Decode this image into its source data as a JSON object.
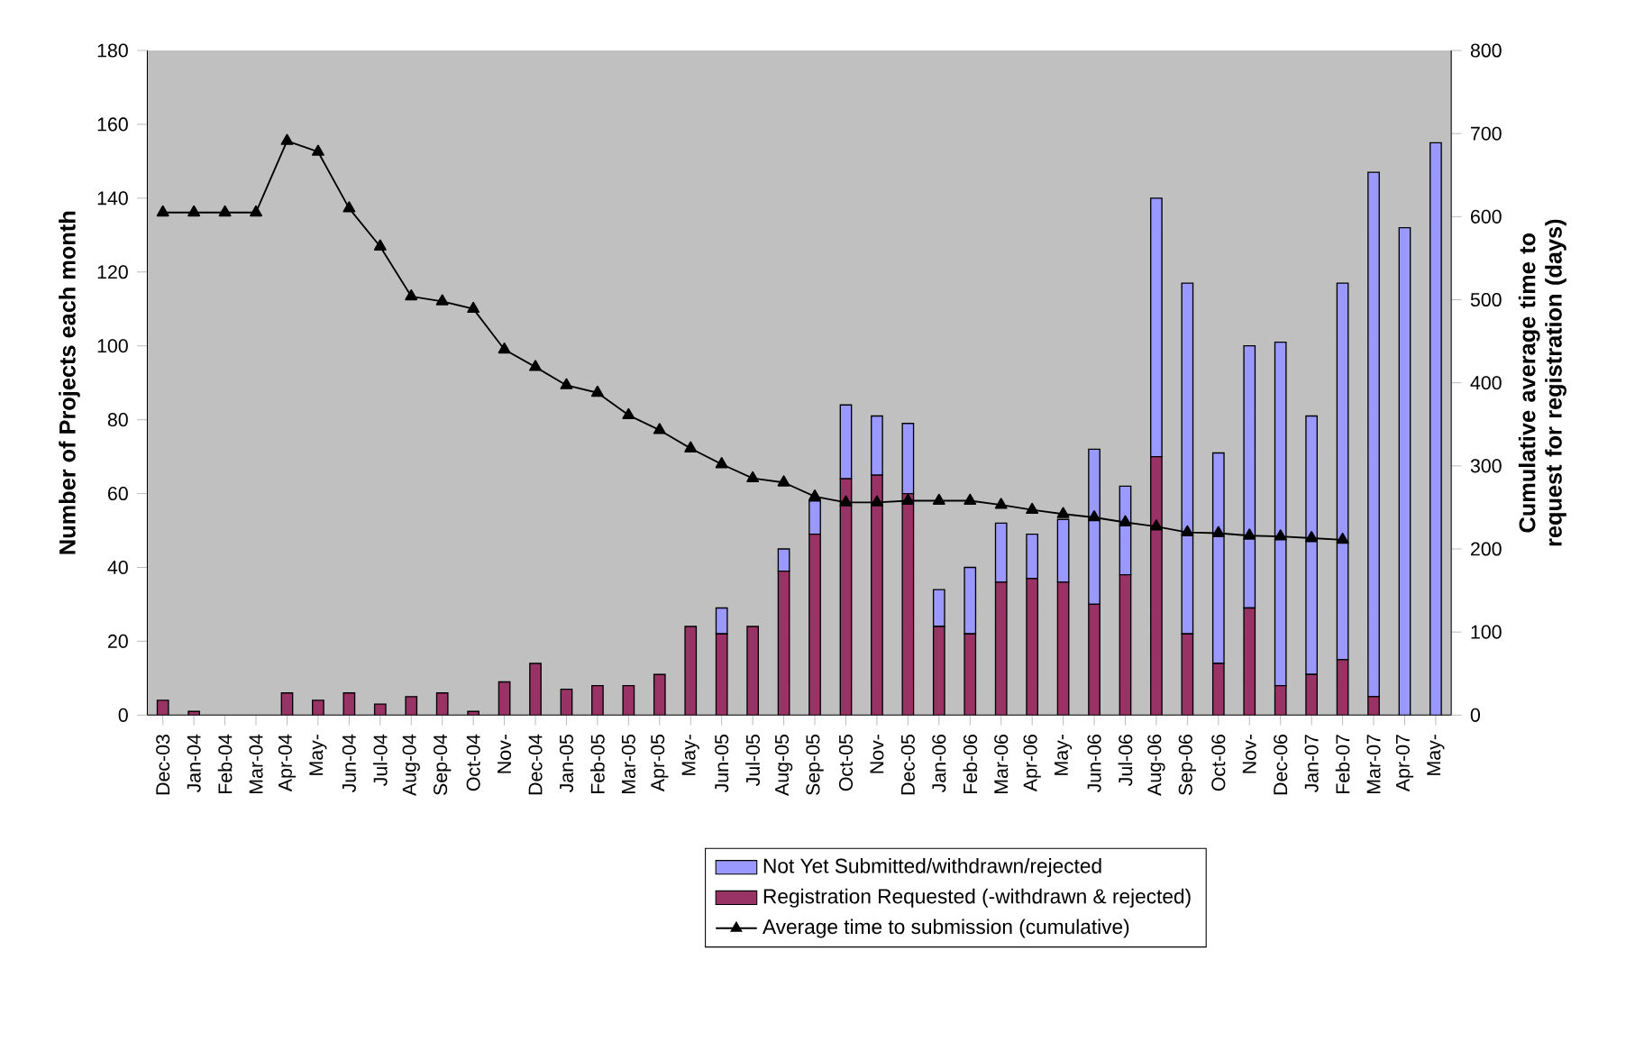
{
  "chart_data": {
    "type": "bar",
    "stacked": true,
    "ylabel": "Number of Projects each month",
    "y2label": "Cumulative average time to request for registration (days)",
    "categories": [
      "Dec-03",
      "Jan-04",
      "Feb-04",
      "Mar-04",
      "Apr-04",
      "May-",
      "Jun-04",
      "Jul-04",
      "Aug-04",
      "Sep-04",
      "Oct-04",
      "Nov-",
      "Dec-04",
      "Jan-05",
      "Feb-05",
      "Mar-05",
      "Apr-05",
      "May-",
      "Jun-05",
      "Jul-05",
      "Aug-05",
      "Sep-05",
      "Oct-05",
      "Nov-",
      "Dec-05",
      "Jan-06",
      "Feb-06",
      "Mar-06",
      "Apr-06",
      "May-",
      "Jun-06",
      "Jul-06",
      "Aug-06",
      "Sep-06",
      "Oct-06",
      "Nov-",
      "Dec-06",
      "Jan-07",
      "Feb-07",
      "Mar-07",
      "Apr-07",
      "May-"
    ],
    "ylim": [
      0,
      180
    ],
    "yticks": [
      0,
      20,
      40,
      60,
      80,
      100,
      120,
      140,
      160,
      180
    ],
    "y2lim": [
      0,
      800
    ],
    "y2ticks": [
      0,
      100,
      200,
      300,
      400,
      500,
      600,
      700,
      800
    ],
    "legend": "bottom",
    "series": [
      {
        "name": "Registration Requested  (-withdrawn & rejected)",
        "type": "bar",
        "color": "#993366",
        "values": [
          4,
          1,
          0,
          0,
          6,
          4,
          6,
          3,
          5,
          6,
          1,
          9,
          14,
          7,
          8,
          8,
          11,
          24,
          22,
          24,
          39,
          49,
          64,
          65,
          60,
          24,
          22,
          36,
          37,
          36,
          30,
          38,
          70,
          22,
          14,
          29,
          8,
          11,
          15,
          5,
          0,
          0
        ]
      },
      {
        "name": "Not Yet Submitted/withdrawn/rejected",
        "type": "bar",
        "color": "#9999ff",
        "values": [
          0,
          0,
          0,
          0,
          0,
          0,
          0,
          0,
          0,
          0,
          0,
          0,
          0,
          0,
          0,
          0,
          0,
          0,
          7,
          0,
          6,
          9,
          20,
          16,
          19,
          10,
          18,
          16,
          12,
          17,
          42,
          24,
          70,
          95,
          57,
          71,
          93,
          70,
          102,
          142,
          132,
          155
        ]
      },
      {
        "name": "Average time to submission (cumulative)",
        "type": "line",
        "axis": "y2",
        "color": "#000000",
        "marker": "triangle",
        "values": [
          605,
          605,
          605,
          605,
          691,
          678,
          610,
          564,
          504,
          498,
          489,
          440,
          419,
          397,
          388,
          361,
          343,
          321,
          302,
          285,
          280,
          263,
          256,
          256,
          258,
          258,
          258,
          253,
          247,
          242,
          238,
          232,
          227,
          220,
          219,
          216,
          215,
          213,
          211,
          null,
          null,
          null
        ]
      }
    ]
  }
}
